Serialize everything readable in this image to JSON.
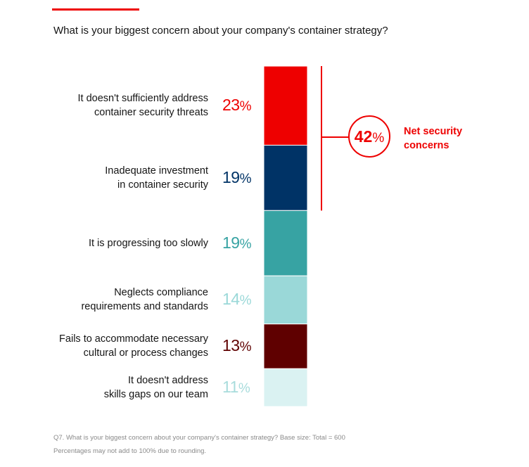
{
  "question": "What is your biggest concern about your company's container strategy?",
  "chart_data": {
    "type": "bar",
    "orientation": "stacked-vertical",
    "unit": "%",
    "categories": [
      [
        "It doesn't sufficiently address",
        "container security threats"
      ],
      [
        "Inadequate investment",
        "in container security"
      ],
      [
        "It is progressing too slowly"
      ],
      [
        "Neglects compliance",
        "requirements and standards"
      ],
      [
        "Fails to accommodate necessary",
        "cultural or process changes"
      ],
      [
        "It doesn't address",
        "skills gaps on our team"
      ]
    ],
    "values": [
      23,
      19,
      19,
      14,
      13,
      11
    ],
    "colors": [
      "#ee0000",
      "#003366",
      "#37a3a3",
      "#9ad8d8",
      "#5f0000",
      "#daf2f2"
    ],
    "net": {
      "value": 42,
      "label": [
        "Net security",
        "concerns"
      ],
      "covers": [
        0,
        1
      ],
      "color": "#ee0000"
    }
  },
  "footnotes": [
    "Q7. What is your biggest concern about your company's container strategy? Base size: Total = 600",
    "Percentages may not add to 100% due to rounding."
  ]
}
